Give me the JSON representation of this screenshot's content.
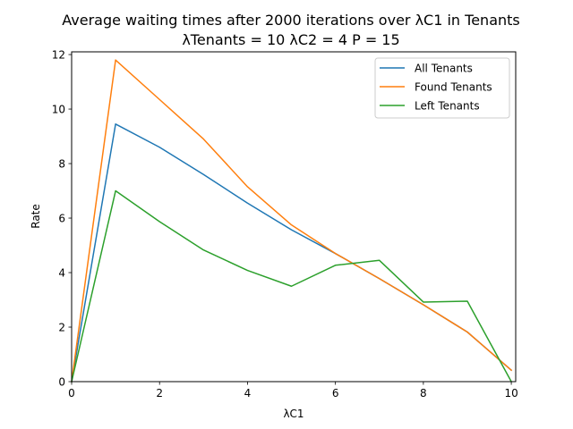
{
  "chart_data": {
    "type": "line",
    "title": "Average waiting times after 2000 iterations over λC1 in Tenants",
    "subtitle": "λTenants = 10 λC2 = 4 P = 15",
    "xlabel": "λC1",
    "ylabel": "Rate",
    "xlim": [
      0,
      10.1
    ],
    "ylim": [
      0,
      12.1
    ],
    "xticks": [
      0,
      2,
      4,
      6,
      8,
      10
    ],
    "yticks": [
      0,
      2,
      4,
      6,
      8,
      10,
      12
    ],
    "grid": false,
    "legend_position": "top-right",
    "x": [
      0,
      1,
      2,
      3,
      4,
      5,
      6,
      7,
      8,
      9,
      10
    ],
    "series": [
      {
        "name": "All Tenants",
        "color": "#1f77b4",
        "values": [
          0,
          9.45,
          8.6,
          7.6,
          6.55,
          5.57,
          4.7,
          3.78,
          2.82,
          1.82,
          0.42
        ]
      },
      {
        "name": "Found Tenants",
        "color": "#ff7f0e",
        "values": [
          0,
          11.8,
          10.35,
          8.9,
          7.15,
          5.75,
          4.7,
          3.78,
          2.82,
          1.82,
          0.42
        ]
      },
      {
        "name": "Left Tenants",
        "color": "#2ca02c",
        "values": [
          0,
          7.0,
          5.87,
          4.83,
          4.08,
          3.5,
          4.27,
          4.45,
          2.92,
          2.95,
          0
        ]
      }
    ]
  }
}
